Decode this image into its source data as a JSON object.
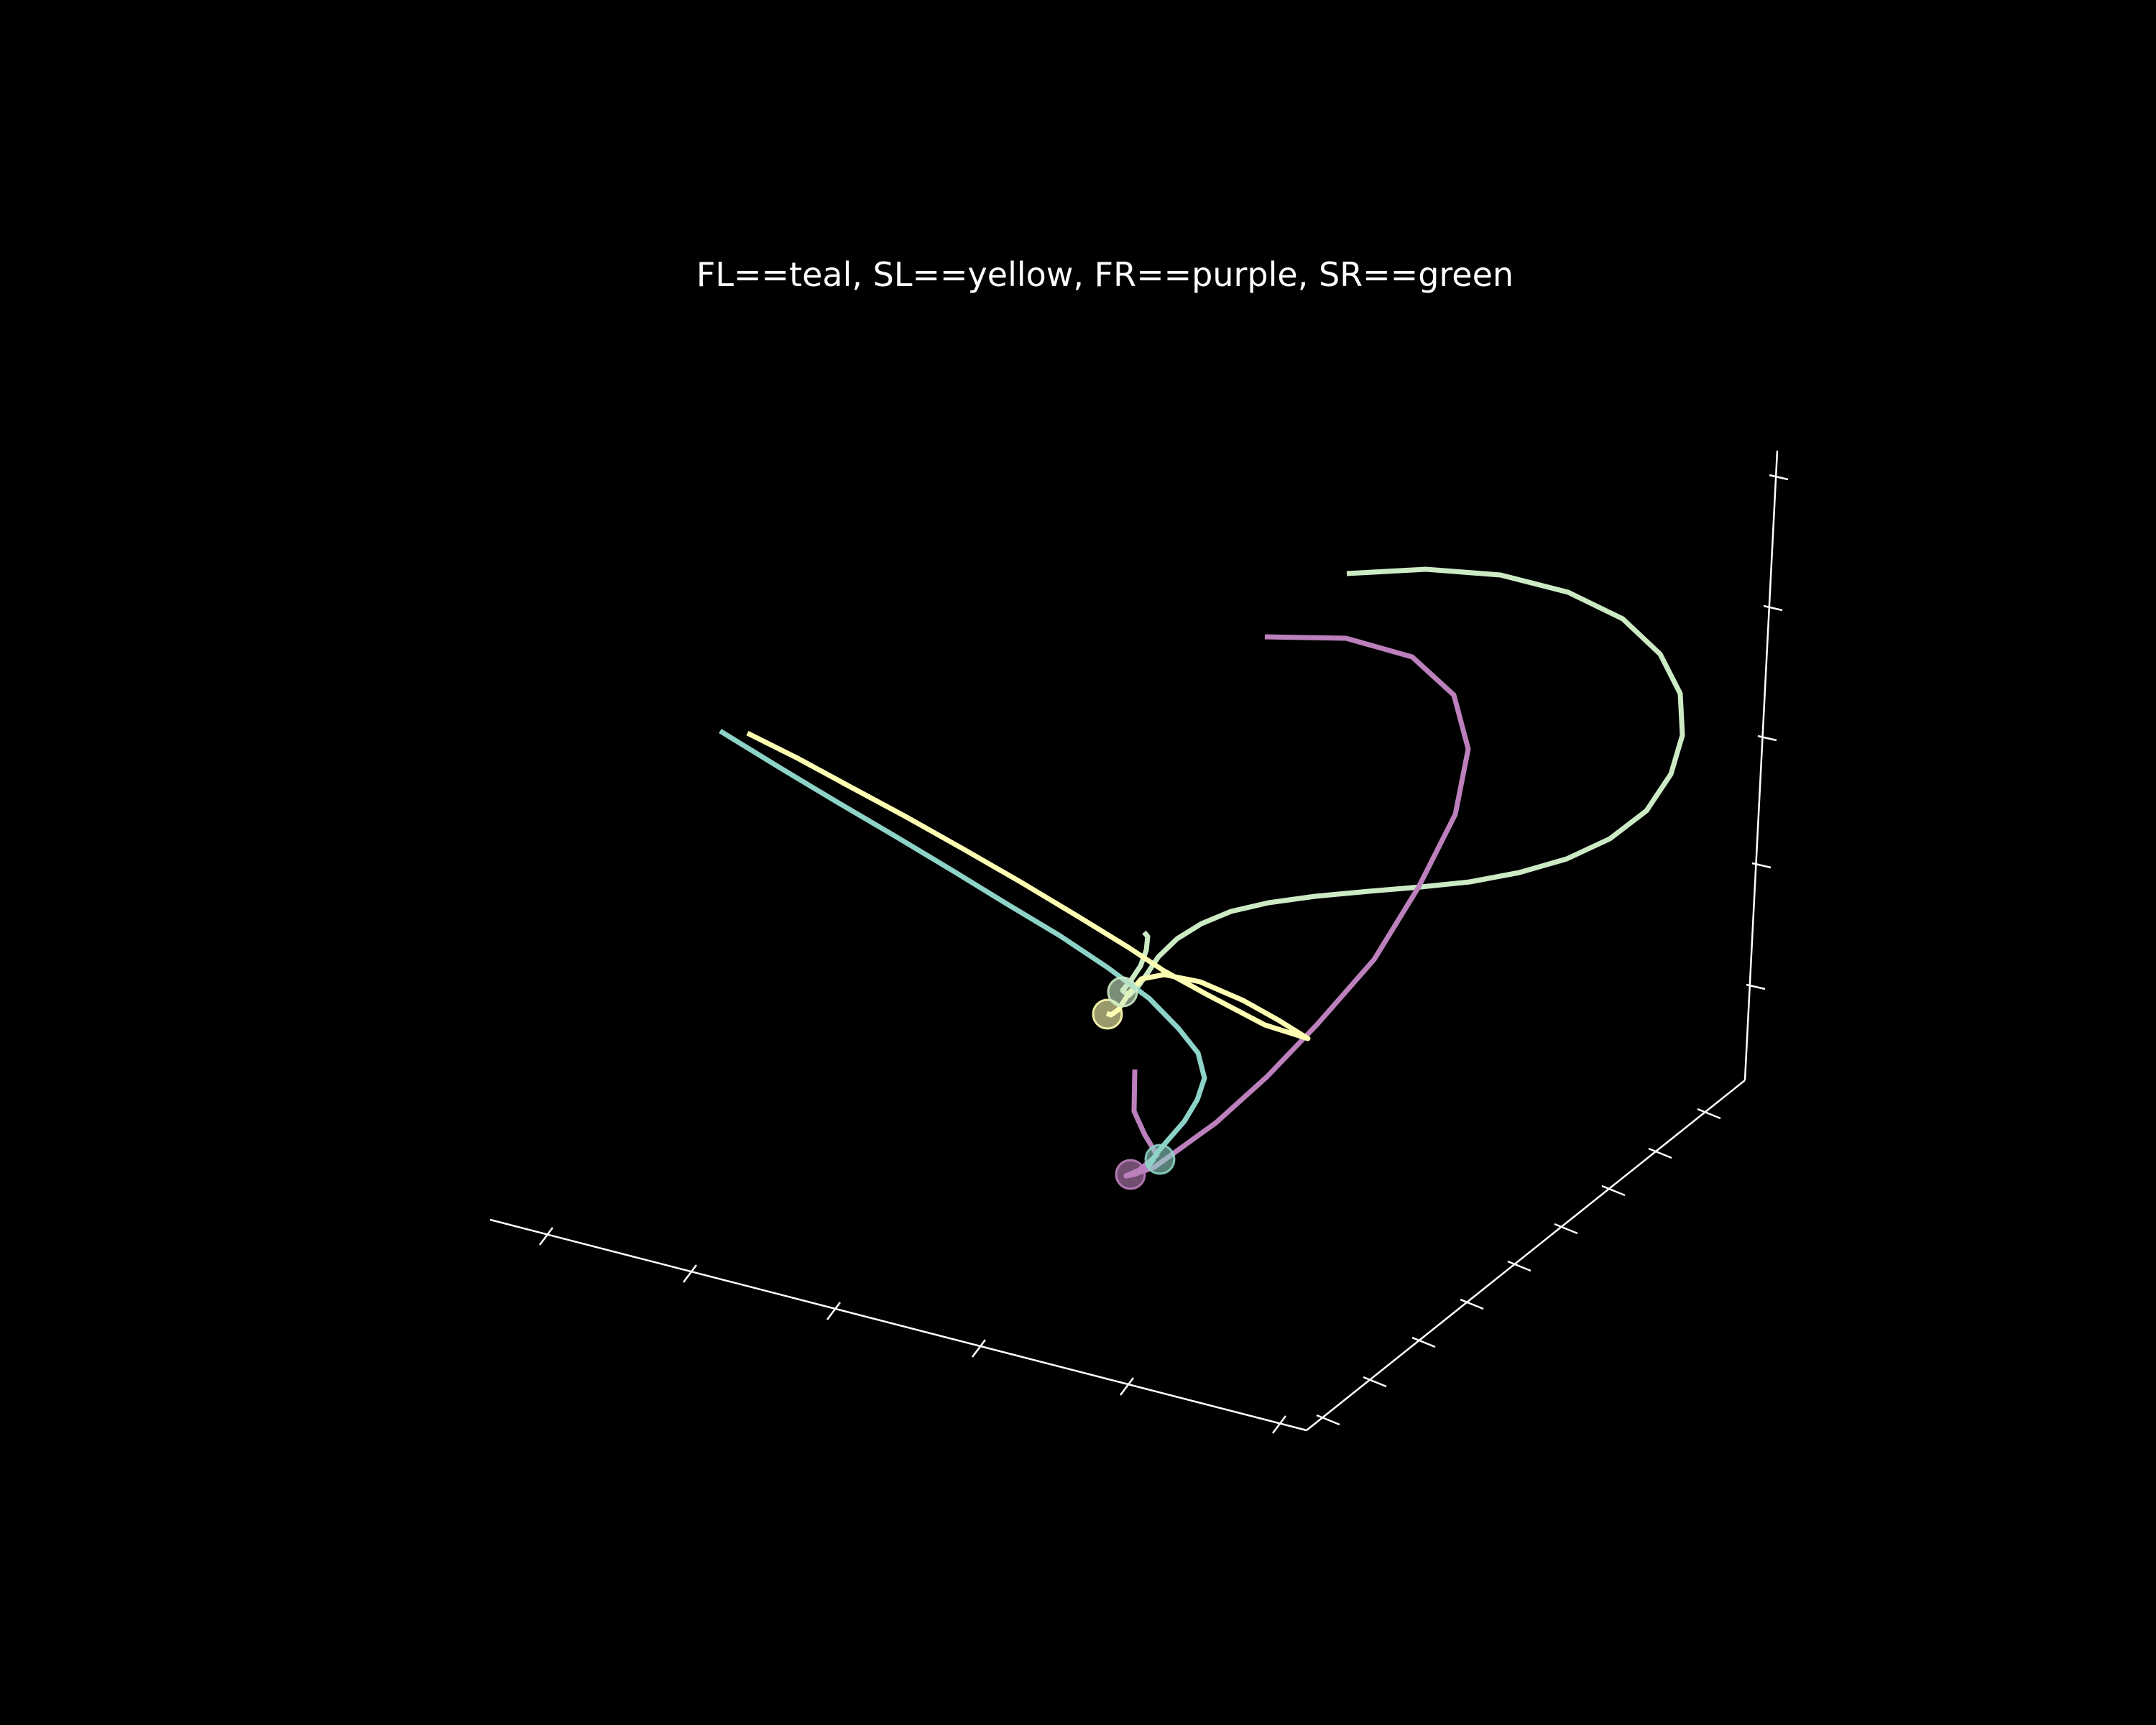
{
  "chart_data": {
    "type": "line",
    "projection": "3d",
    "title": "FL==teal, SL==yellow, FR==purple, SR==green",
    "axes": {
      "x": {
        "tick_labels_shown": false,
        "tick_count": 6
      },
      "y": {
        "tick_labels_shown": false,
        "tick_count": 9
      },
      "z": {
        "tick_labels_shown": false,
        "tick_count": 5
      }
    },
    "grid": false,
    "legend": "none",
    "series": [
      {
        "color": "#8dd3c7",
        "points": [
          [
            1002,
            1017
          ],
          [
            1085,
            1068
          ],
          [
            1165,
            1116
          ],
          [
            1245,
            1163
          ],
          [
            1325,
            1211
          ],
          [
            1400,
            1257
          ],
          [
            1475,
            1302
          ],
          [
            1541,
            1346
          ],
          [
            1599,
            1389
          ],
          [
            1640,
            1431
          ],
          [
            1667,
            1465
          ],
          [
            1676,
            1500
          ],
          [
            1666,
            1530
          ],
          [
            1648,
            1560
          ],
          [
            1628,
            1583
          ],
          [
            1610,
            1604
          ],
          [
            1598,
            1622
          ],
          [
            1606,
            1612
          ]
        ],
        "marker": [
          1614,
          1613
        ]
      },
      {
        "color": "#ffffb3",
        "points": [
          [
            1040,
            1020
          ],
          [
            1110,
            1055
          ],
          [
            1180,
            1093
          ],
          [
            1260,
            1136
          ],
          [
            1340,
            1181
          ],
          [
            1420,
            1227
          ],
          [
            1500,
            1275
          ],
          [
            1570,
            1318
          ],
          [
            1620,
            1351
          ],
          [
            1680,
            1384
          ],
          [
            1760,
            1426
          ],
          [
            1820,
            1445
          ],
          [
            1780,
            1420
          ],
          [
            1730,
            1392
          ],
          [
            1670,
            1366
          ],
          [
            1620,
            1356
          ],
          [
            1588,
            1362
          ],
          [
            1571,
            1382
          ],
          [
            1556,
            1405
          ],
          [
            1546,
            1412
          ],
          [
            1540,
            1410
          ]
        ],
        "marker": [
          1541,
          1411
        ]
      },
      {
        "color": "#bc80bd",
        "points": [
          [
            1760,
            886
          ],
          [
            1873,
            888
          ],
          [
            1965,
            914
          ],
          [
            2023,
            967
          ],
          [
            2043,
            1042
          ],
          [
            2025,
            1133
          ],
          [
            1974,
            1234
          ],
          [
            1912,
            1335
          ],
          [
            1833,
            1425
          ],
          [
            1763,
            1498
          ],
          [
            1692,
            1562
          ],
          [
            1638,
            1601
          ],
          [
            1606,
            1624
          ],
          [
            1578,
            1634
          ],
          [
            1567,
            1636
          ],
          [
            1585,
            1628
          ],
          [
            1610,
            1607
          ],
          [
            1593,
            1579
          ],
          [
            1578,
            1546
          ],
          [
            1579,
            1488
          ]
        ],
        "marker": [
          1573,
          1634
        ]
      },
      {
        "color": "#ccebc5",
        "points": [
          [
            1874,
            798
          ],
          [
            1984,
            792
          ],
          [
            2088,
            800
          ],
          [
            2182,
            824
          ],
          [
            2258,
            861
          ],
          [
            2310,
            910
          ],
          [
            2338,
            965
          ],
          [
            2341,
            1023
          ],
          [
            2325,
            1077
          ],
          [
            2291,
            1128
          ],
          [
            2240,
            1167
          ],
          [
            2180,
            1195
          ],
          [
            2114,
            1214
          ],
          [
            2045,
            1227
          ],
          [
            1977,
            1234
          ],
          [
            1905,
            1240
          ],
          [
            1830,
            1247
          ],
          [
            1765,
            1256
          ],
          [
            1713,
            1268
          ],
          [
            1672,
            1285
          ],
          [
            1638,
            1306
          ],
          [
            1612,
            1331
          ],
          [
            1596,
            1355
          ],
          [
            1584,
            1372
          ],
          [
            1571,
            1385
          ],
          [
            1562,
            1378
          ],
          [
            1575,
            1362
          ],
          [
            1587,
            1344
          ],
          [
            1595,
            1322
          ],
          [
            1597,
            1303
          ],
          [
            1592,
            1297
          ]
        ],
        "marker": [
          1562,
          1380
        ]
      }
    ]
  }
}
